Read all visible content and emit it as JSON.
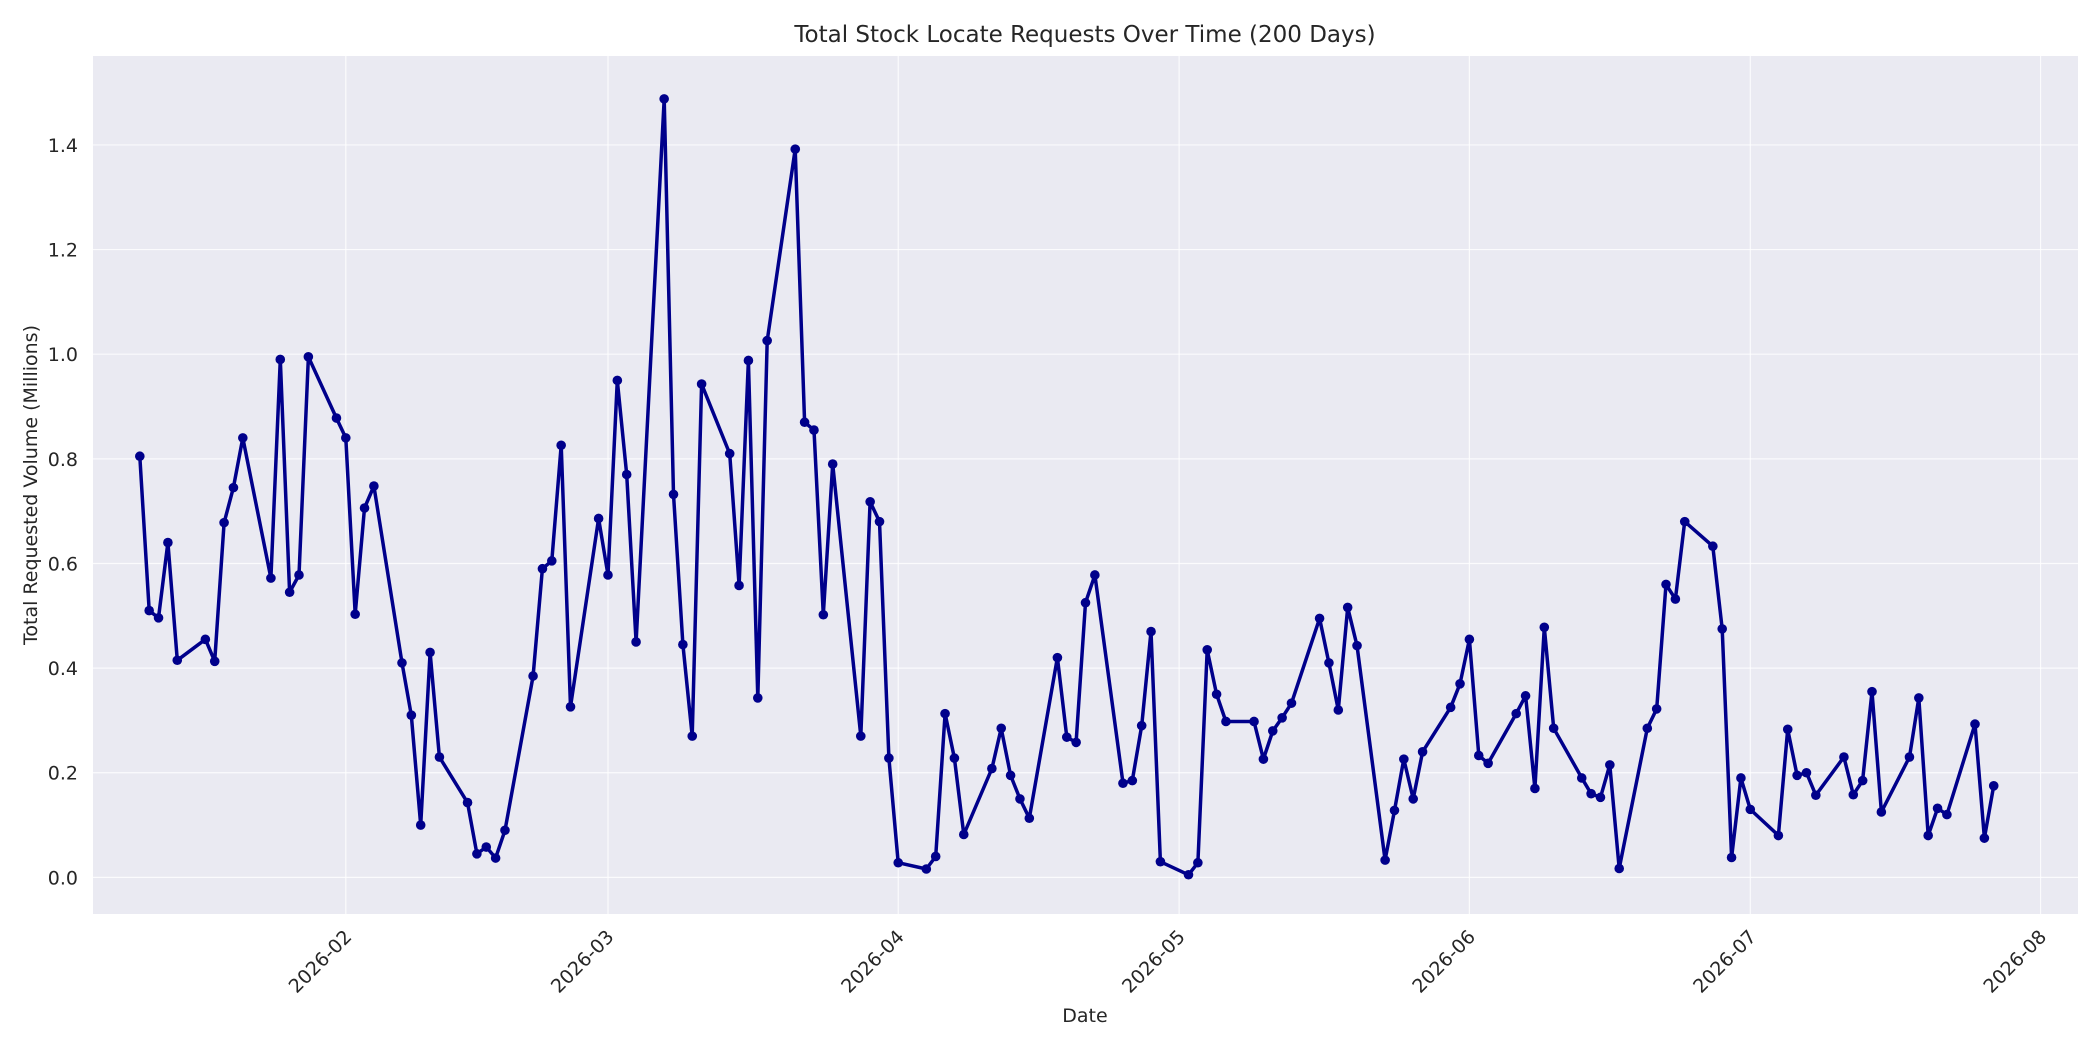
{
  "chart_data": {
    "type": "line",
    "title": "Total Stock Locate Requests Over Time (200 Days)",
    "xlabel": "Date",
    "ylabel": "Total Requested Volume (Millions)",
    "x_range": [
      "2026-01-05",
      "2026-08-05"
    ],
    "ylim": [
      -0.07,
      1.57
    ],
    "y_ticks": [
      0.0,
      0.2,
      0.4,
      0.6,
      0.8,
      1.0,
      1.2,
      1.4
    ],
    "y_tick_labels": [
      "0.0",
      "0.2",
      "0.4",
      "0.6",
      "0.8",
      "1.0",
      "1.2",
      "1.4"
    ],
    "x_ticks": [
      "2026-02-01",
      "2026-03-01",
      "2026-04-01",
      "2026-05-01",
      "2026-06-01",
      "2026-07-01",
      "2026-08-01"
    ],
    "x_tick_labels": [
      "2026-02",
      "2026-03",
      "2026-04",
      "2026-05",
      "2026-06",
      "2026-07",
      "2026-08"
    ],
    "grid": true,
    "line_color": "#00008b",
    "plot_background": "#eaeaf2",
    "series": [
      {
        "points": [
          [
            "2026-01-10",
            0.805
          ],
          [
            "2026-01-11",
            0.51
          ],
          [
            "2026-01-12",
            0.496
          ],
          [
            "2026-01-13",
            0.64
          ],
          [
            "2026-01-14",
            0.415
          ],
          [
            "2026-01-17",
            0.455
          ],
          [
            "2026-01-18",
            0.413
          ],
          [
            "2026-01-19",
            0.678
          ],
          [
            "2026-01-20",
            0.745
          ],
          [
            "2026-01-21",
            0.84
          ],
          [
            "2026-01-24",
            0.572
          ],
          [
            "2026-01-25",
            0.99
          ],
          [
            "2026-01-26",
            0.545
          ],
          [
            "2026-01-27",
            0.578
          ],
          [
            "2026-01-28",
            0.995
          ],
          [
            "2026-01-31",
            0.878
          ],
          [
            "2026-02-01",
            0.84
          ],
          [
            "2026-02-02",
            0.503
          ],
          [
            "2026-02-03",
            0.706
          ],
          [
            "2026-02-04",
            0.748
          ],
          [
            "2026-02-07",
            0.41
          ],
          [
            "2026-02-08",
            0.31
          ],
          [
            "2026-02-09",
            0.1
          ],
          [
            "2026-02-10",
            0.43
          ],
          [
            "2026-02-11",
            0.23
          ],
          [
            "2026-02-14",
            0.143
          ],
          [
            "2026-02-15",
            0.045
          ],
          [
            "2026-02-16",
            0.058
          ],
          [
            "2026-02-17",
            0.037
          ],
          [
            "2026-02-18",
            0.09
          ],
          [
            "2026-02-21",
            0.385
          ],
          [
            "2026-02-22",
            0.59
          ],
          [
            "2026-02-23",
            0.605
          ],
          [
            "2026-02-24",
            0.826
          ],
          [
            "2026-02-25",
            0.326
          ],
          [
            "2026-02-28",
            0.686
          ],
          [
            "2026-03-01",
            0.578
          ],
          [
            "2026-03-02",
            0.95
          ],
          [
            "2026-03-03",
            0.77
          ],
          [
            "2026-03-04",
            0.45
          ],
          [
            "2026-03-07",
            1.488
          ],
          [
            "2026-03-08",
            0.732
          ],
          [
            "2026-03-09",
            0.445
          ],
          [
            "2026-03-10",
            0.27
          ],
          [
            "2026-03-11",
            0.943
          ],
          [
            "2026-03-14",
            0.81
          ],
          [
            "2026-03-15",
            0.558
          ],
          [
            "2026-03-16",
            0.988
          ],
          [
            "2026-03-17",
            0.343
          ],
          [
            "2026-03-18",
            1.026
          ],
          [
            "2026-03-21",
            1.392
          ],
          [
            "2026-03-22",
            0.87
          ],
          [
            "2026-03-23",
            0.855
          ],
          [
            "2026-03-24",
            0.502
          ],
          [
            "2026-03-25",
            0.79
          ],
          [
            "2026-03-28",
            0.27
          ],
          [
            "2026-03-29",
            0.718
          ],
          [
            "2026-03-30",
            0.68
          ],
          [
            "2026-03-31",
            0.228
          ],
          [
            "2026-04-01",
            0.028
          ],
          [
            "2026-04-04",
            0.016
          ],
          [
            "2026-04-05",
            0.04
          ],
          [
            "2026-04-06",
            0.313
          ],
          [
            "2026-04-07",
            0.228
          ],
          [
            "2026-04-08",
            0.082
          ],
          [
            "2026-04-11",
            0.208
          ],
          [
            "2026-04-12",
            0.285
          ],
          [
            "2026-04-13",
            0.195
          ],
          [
            "2026-04-14",
            0.15
          ],
          [
            "2026-04-15",
            0.113
          ],
          [
            "2026-04-18",
            0.42
          ],
          [
            "2026-04-19",
            0.268
          ],
          [
            "2026-04-20",
            0.258
          ],
          [
            "2026-04-21",
            0.525
          ],
          [
            "2026-04-22",
            0.578
          ],
          [
            "2026-04-25",
            0.18
          ],
          [
            "2026-04-26",
            0.185
          ],
          [
            "2026-04-27",
            0.29
          ],
          [
            "2026-04-28",
            0.47
          ],
          [
            "2026-04-29",
            0.03
          ],
          [
            "2026-05-02",
            0.005
          ],
          [
            "2026-05-03",
            0.028
          ],
          [
            "2026-05-04",
            0.435
          ],
          [
            "2026-05-05",
            0.35
          ],
          [
            "2026-05-06",
            0.298
          ],
          [
            "2026-05-09",
            0.298
          ],
          [
            "2026-05-10",
            0.226
          ],
          [
            "2026-05-11",
            0.28
          ],
          [
            "2026-05-12",
            0.305
          ],
          [
            "2026-05-13",
            0.333
          ],
          [
            "2026-05-16",
            0.495
          ],
          [
            "2026-05-17",
            0.41
          ],
          [
            "2026-05-18",
            0.32
          ],
          [
            "2026-05-19",
            0.516
          ],
          [
            "2026-05-20",
            0.443
          ],
          [
            "2026-05-23",
            0.033
          ],
          [
            "2026-05-24",
            0.128
          ],
          [
            "2026-05-25",
            0.226
          ],
          [
            "2026-05-26",
            0.15
          ],
          [
            "2026-05-27",
            0.24
          ],
          [
            "2026-05-30",
            0.325
          ],
          [
            "2026-05-31",
            0.37
          ],
          [
            "2026-06-01",
            0.455
          ],
          [
            "2026-06-02",
            0.233
          ],
          [
            "2026-06-03",
            0.218
          ],
          [
            "2026-06-06",
            0.313
          ],
          [
            "2026-06-07",
            0.347
          ],
          [
            "2026-06-08",
            0.17
          ],
          [
            "2026-06-09",
            0.478
          ],
          [
            "2026-06-10",
            0.285
          ],
          [
            "2026-06-13",
            0.19
          ],
          [
            "2026-06-14",
            0.16
          ],
          [
            "2026-06-15",
            0.153
          ],
          [
            "2026-06-16",
            0.215
          ],
          [
            "2026-06-17",
            0.017
          ],
          [
            "2026-06-20",
            0.285
          ],
          [
            "2026-06-21",
            0.322
          ],
          [
            "2026-06-22",
            0.56
          ],
          [
            "2026-06-23",
            0.532
          ],
          [
            "2026-06-24",
            0.68
          ],
          [
            "2026-06-27",
            0.633
          ],
          [
            "2026-06-28",
            0.475
          ],
          [
            "2026-06-29",
            0.038
          ],
          [
            "2026-06-30",
            0.19
          ],
          [
            "2026-07-01",
            0.13
          ],
          [
            "2026-07-04",
            0.08
          ],
          [
            "2026-07-05",
            0.283
          ],
          [
            "2026-07-06",
            0.195
          ],
          [
            "2026-07-07",
            0.2
          ],
          [
            "2026-07-08",
            0.157
          ],
          [
            "2026-07-11",
            0.23
          ],
          [
            "2026-07-12",
            0.158
          ],
          [
            "2026-07-13",
            0.185
          ],
          [
            "2026-07-14",
            0.355
          ],
          [
            "2026-07-15",
            0.125
          ],
          [
            "2026-07-18",
            0.23
          ],
          [
            "2026-07-19",
            0.343
          ],
          [
            "2026-07-20",
            0.08
          ],
          [
            "2026-07-21",
            0.132
          ],
          [
            "2026-07-22",
            0.12
          ],
          [
            "2026-07-25",
            0.293
          ],
          [
            "2026-07-26",
            0.075
          ],
          [
            "2026-07-27",
            0.175
          ]
        ]
      }
    ]
  }
}
